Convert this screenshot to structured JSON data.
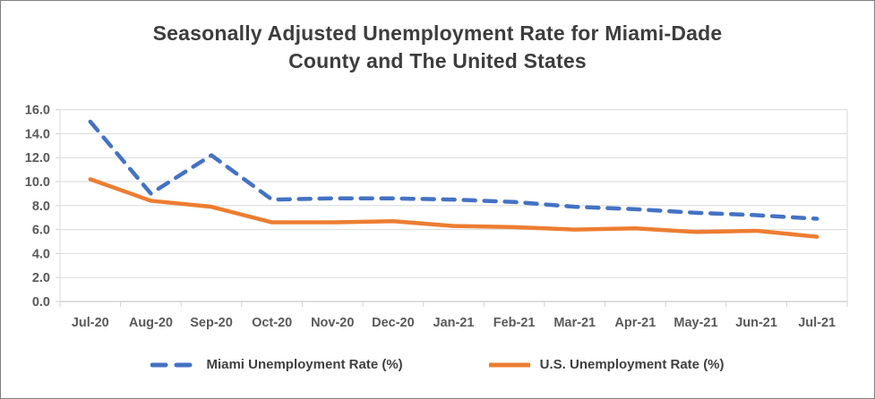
{
  "window": {
    "background": "#FFFFFF",
    "border_color": "#7F7F7F"
  },
  "title": {
    "line1": "Seasonally Adjusted Unemployment Rate for Miami-Dade",
    "line2": "County and The United States"
  },
  "chart_data": {
    "type": "line",
    "title": "Seasonally Adjusted Unemployment Rate for Miami-Dade County and The United States",
    "categories": [
      "Jul-20",
      "Aug-20",
      "Sep-20",
      "Oct-20",
      "Nov-20",
      "Dec-20",
      "Jan-21",
      "Feb-21",
      "Mar-21",
      "Apr-21",
      "May-21",
      "Jun-21",
      "Jul-21"
    ],
    "series": [
      {
        "name": "Miami Unemployment Rate (%)",
        "line_style": "dashed",
        "color": "#4472C4",
        "values": [
          15.0,
          9.0,
          12.2,
          8.5,
          8.6,
          8.6,
          8.5,
          8.3,
          7.9,
          7.7,
          7.4,
          7.2,
          6.9
        ]
      },
      {
        "name": "U.S. Unemployment Rate (%)",
        "line_style": "solid",
        "color": "#ED7D31",
        "values": [
          10.2,
          8.4,
          7.9,
          6.6,
          6.6,
          6.7,
          6.3,
          6.2,
          6.0,
          6.1,
          5.8,
          5.9,
          5.4
        ]
      }
    ],
    "xlabel": "",
    "ylabel": "",
    "ylim": [
      0,
      16
    ],
    "ytick_step": 2,
    "ytick_labels": [
      "0.0",
      "2.0",
      "4.0",
      "6.0",
      "8.0",
      "10.0",
      "12.0",
      "14.0",
      "16.0"
    ],
    "grid": "horizontal gridlines on",
    "legend_position": "bottom",
    "gridline_color": "#D9D9D9",
    "axis_color": "#D2D2D2",
    "tick_label_color": "#595959"
  }
}
